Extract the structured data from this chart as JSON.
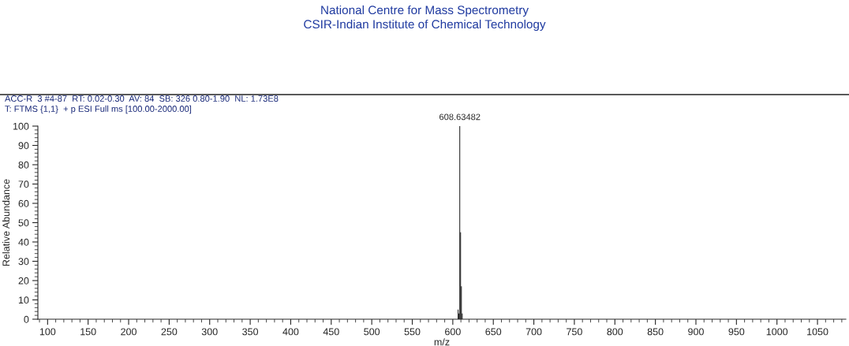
{
  "chart_data": {
    "type": "bar",
    "title": "National Centre for Mass Spectrometry",
    "subtitle": "CSIR-Indian Institute of Chemical Technology",
    "annotations": [
      "ACC-R  3 #4-87  RT: 0.02-0.30  AV: 84  SB: 326 0.80-1.90  NL: 1.73E8",
      "T: FTMS {1,1}  + p ESI Full ms [100.00-2000.00]",
      {
        "text": "608.63482",
        "x": 608.63482,
        "y": 100
      }
    ],
    "x": [
      606.6,
      607.6,
      608.63482,
      609.64,
      610.64,
      611.64
    ],
    "values": [
      5,
      3,
      100,
      45,
      17,
      3
    ],
    "color": "#000000",
    "xlabel": "m/z",
    "ylabel": "Relative Abundance",
    "xlim": [
      88,
      1085
    ],
    "ylim": [
      0,
      100
    ],
    "xticks": [
      100,
      150,
      200,
      250,
      300,
      350,
      400,
      450,
      500,
      550,
      600,
      650,
      700,
      750,
      800,
      850,
      900,
      950,
      1000,
      1050
    ],
    "yticks": [
      0,
      10,
      20,
      30,
      40,
      50,
      60,
      70,
      80,
      90,
      100
    ],
    "grid": false,
    "legend": false
  }
}
